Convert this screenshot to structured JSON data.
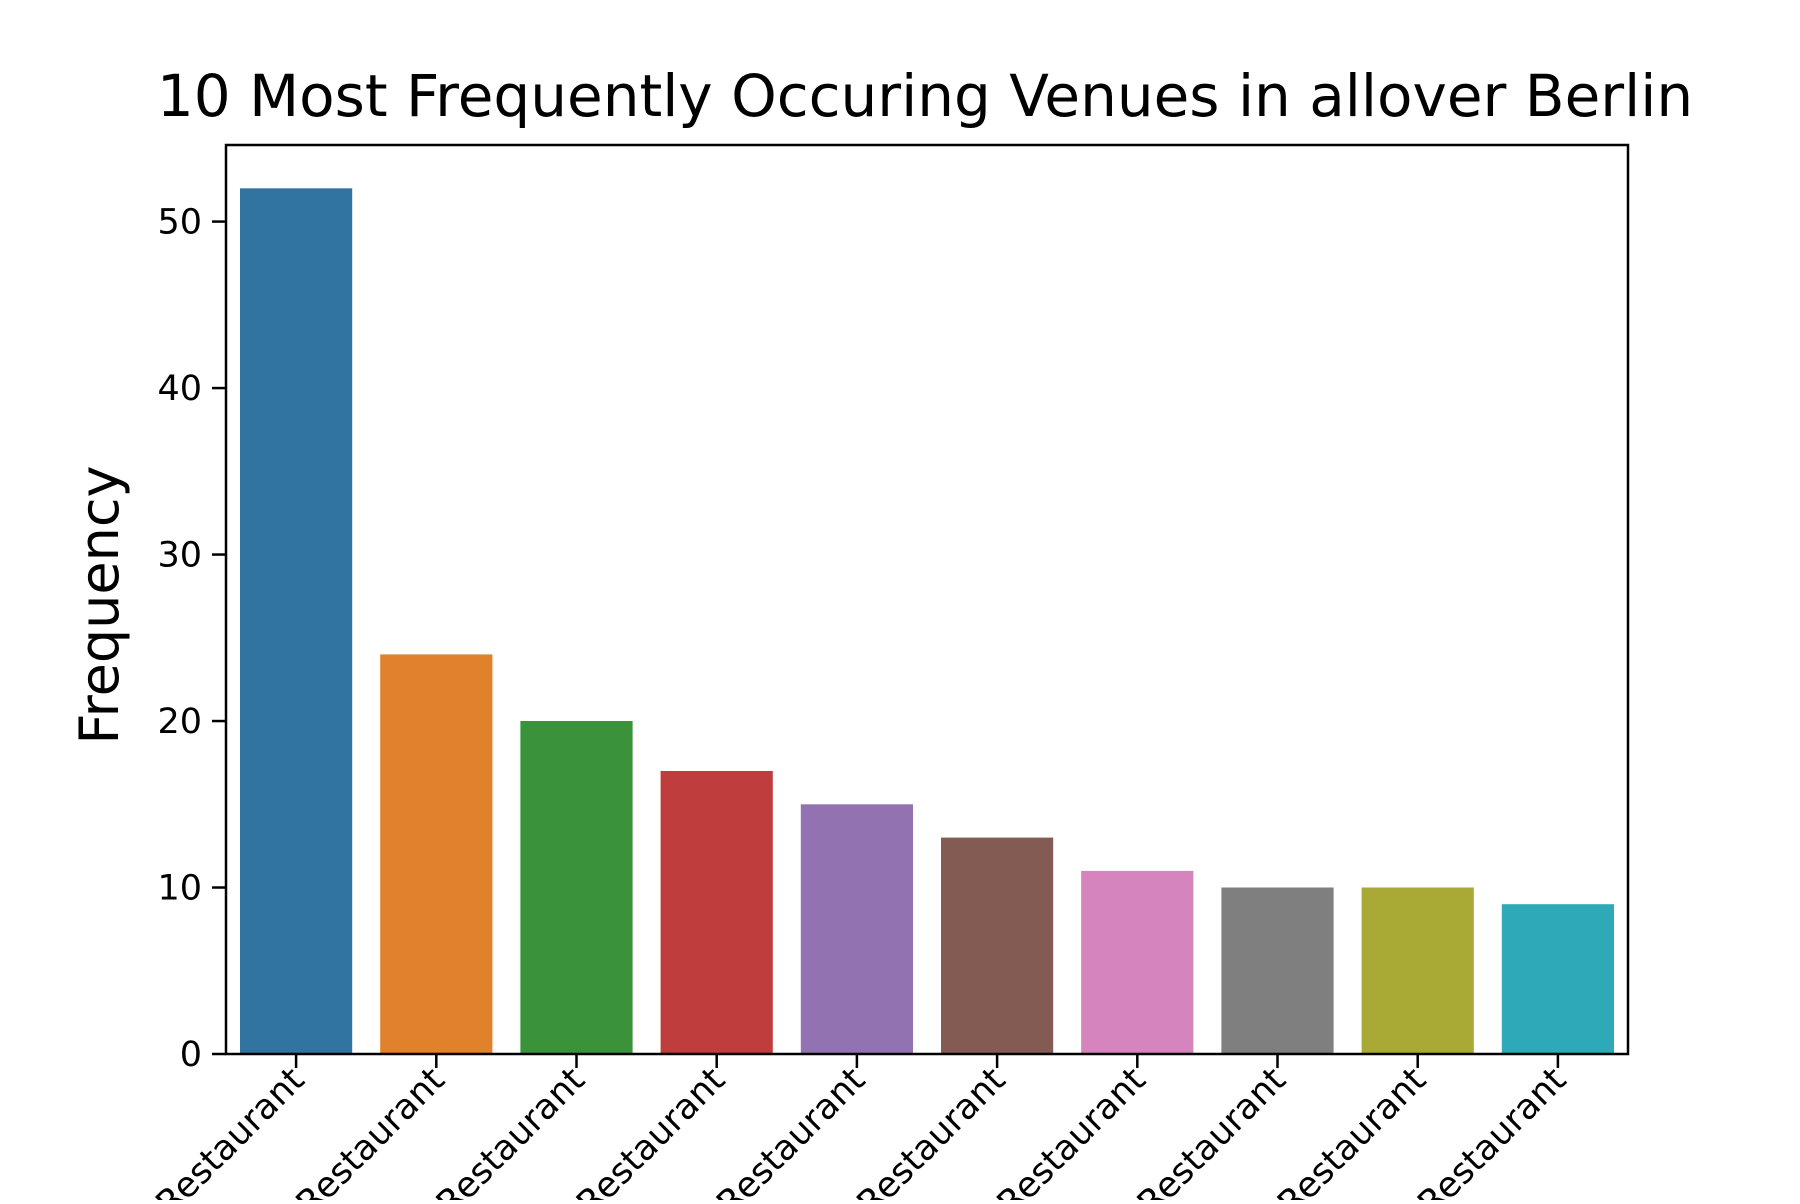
{
  "chart_data": {
    "type": "bar",
    "title": "10 Most Frequently Occuring Venues in allover Berlin",
    "xlabel": "",
    "ylabel": "Frequency",
    "ylim": [
      0,
      54.6
    ],
    "yticks": [
      0,
      10,
      20,
      30,
      40,
      50
    ],
    "grid": false,
    "categories": [
      "Restaurant",
      "Restaurant",
      "Restaurant",
      "Restaurant",
      "Restaurant",
      "Restaurant",
      "Restaurant",
      "Restaurant",
      "Restaurant",
      "Restaurant"
    ],
    "values": [
      52,
      24,
      20,
      17,
      15,
      13,
      11,
      10,
      10,
      9
    ],
    "colors": [
      "#3274a1",
      "#e1812c",
      "#3a923a",
      "#c03d3e",
      "#9372b2",
      "#845b53",
      "#d684bd",
      "#7f7f7f",
      "#a9aa35",
      "#2ea9b8"
    ]
  }
}
